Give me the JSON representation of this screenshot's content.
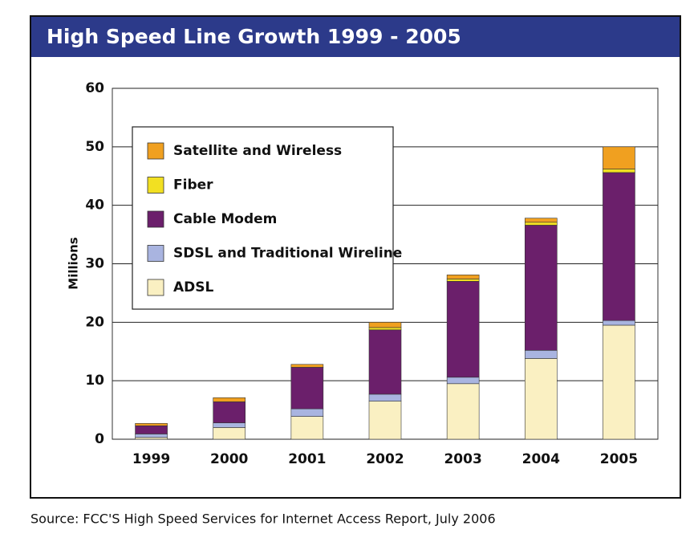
{
  "chart_data": {
    "type": "stacked_bar",
    "title": "High Speed Line Growth 1999 - 2005",
    "y_label": "Millions",
    "source": "Source: FCC'S High Speed Services for Internet Access Report, July 2006",
    "categories": [
      "1999",
      "2000",
      "2001",
      "2002",
      "2003",
      "2004",
      "2005"
    ],
    "series": [
      {
        "name": "ADSL",
        "color": "#faf0c2",
        "values": [
          0.3,
          2.0,
          3.9,
          6.5,
          9.5,
          13.8,
          19.5
        ]
      },
      {
        "name": "SDSL and Traditional Wireline",
        "color": "#a9b4e0",
        "values": [
          0.6,
          0.8,
          1.3,
          1.2,
          1.1,
          1.4,
          0.8
        ]
      },
      {
        "name": "Cable Modem",
        "color": "#6b1f6b",
        "values": [
          1.4,
          3.6,
          7.1,
          11.0,
          16.4,
          21.4,
          25.3
        ]
      },
      {
        "name": "Fiber",
        "color": "#f2e022",
        "values": [
          0,
          0,
          0,
          0.4,
          0.4,
          0.5,
          0.6
        ]
      },
      {
        "name": "Satellite and Wireless",
        "color": "#f0a020",
        "values": [
          0.4,
          0.7,
          0.5,
          0.9,
          0.7,
          0.7,
          3.8
        ]
      }
    ],
    "ylim": [
      0,
      60
    ],
    "yticks": [
      0,
      10,
      20,
      30,
      40,
      50,
      60
    ],
    "grid": true,
    "legend": "upper left"
  }
}
